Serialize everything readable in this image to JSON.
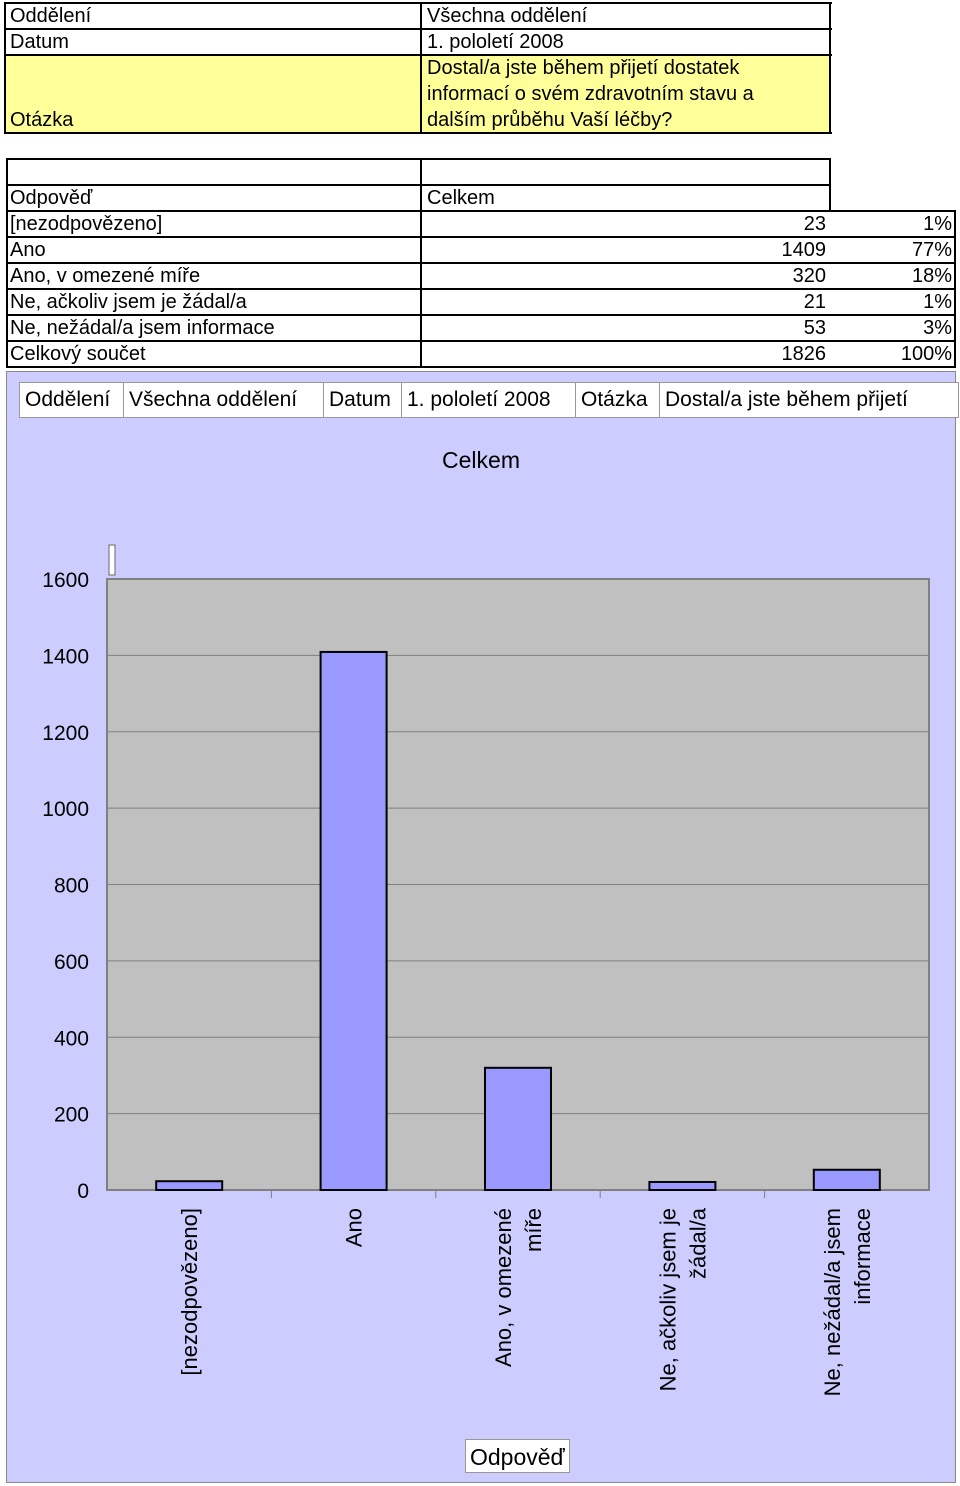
{
  "header": {
    "rows": [
      {
        "label": "Oddělení",
        "value": "Všechna oddělení"
      },
      {
        "label": "Datum",
        "value": "1. pololetí 2008"
      },
      {
        "label": "Otázka",
        "value_lines": [
          "Dostal/a jste během přijetí dostatek",
          "informací o svém zdravotním stavu a",
          "dalším průběhu Vaší  léčby?"
        ]
      }
    ],
    "question_bg": "#ffff99"
  },
  "table": {
    "col_answer": "Odpověď",
    "col_total": "Celkem",
    "rows": [
      {
        "label": "[nezodpovězeno]",
        "count": "23",
        "pct": "1%"
      },
      {
        "label": "Ano",
        "count": "1409",
        "pct": "77%"
      },
      {
        "label": "Ano, v omezené míře",
        "count": "320",
        "pct": "18%"
      },
      {
        "label": "Ne, ačkoliv jsem je žádal/a",
        "count": "21",
        "pct": "1%"
      },
      {
        "label": "Ne, nežádal/a jsem informace",
        "count": "53",
        "pct": "3%"
      },
      {
        "label": "Celkový součet",
        "count": "1826",
        "pct": "100%"
      }
    ]
  },
  "chart_filters": [
    {
      "label": "Oddělení"
    },
    {
      "label": "Všechna oddělení"
    },
    {
      "label": "Datum"
    },
    {
      "label": "1. pololetí 2008"
    },
    {
      "label": "Otázka"
    },
    {
      "label": "Dostal/a jste během přijetí"
    }
  ],
  "chart_data": {
    "type": "bar",
    "title": "Celkem",
    "xlabel": "Odpověď",
    "ylabel": "",
    "categories": [
      "[nezodpovězeno]",
      "Ano",
      "Ano, v omezené míře",
      "Ne, ačkoliv jsem je žádal/a",
      "Ne, nežádal/a jsem informace"
    ],
    "category_lines": [
      [
        "[nezodpovězeno]"
      ],
      [
        "Ano"
      ],
      [
        "Ano, v omezené",
        "míře"
      ],
      [
        "Ne, ačkoliv jsem je",
        "žádal/a"
      ],
      [
        "Ne, nežádal/a jsem",
        "informace"
      ]
    ],
    "values": [
      23,
      1409,
      320,
      21,
      53
    ],
    "ylim": [
      0,
      1600
    ],
    "yticks": [
      0,
      200,
      400,
      600,
      800,
      1000,
      1200,
      1400,
      1600
    ],
    "grid": true,
    "colors": {
      "bar": "#9999ff",
      "plot_bg": "#c0c0c0",
      "chart_bg": "#ccccff"
    }
  }
}
